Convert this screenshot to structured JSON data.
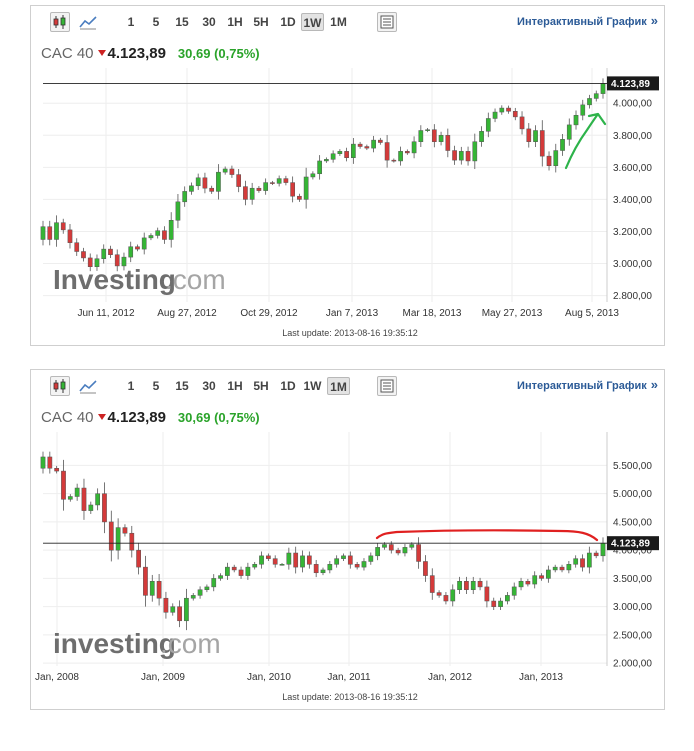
{
  "toolbar": {
    "intervals": [
      "1",
      "5",
      "15",
      "30",
      "1H",
      "5H",
      "1D",
      "1W",
      "1M"
    ],
    "interactive_link": "Интерактивный График",
    "link_chevron": "»"
  },
  "panels": [
    {
      "active_interval": "1W",
      "quote": {
        "name": "CAC 40",
        "price": "4.123,89",
        "change": "30,69 (0,75%)"
      },
      "last_update": "Last update: 2013-08-16 19:35:12",
      "price_tag": "4.123,89",
      "watermark": {
        "part1": "Investing",
        "part2": ".com"
      }
    },
    {
      "active_interval": "1M",
      "quote": {
        "name": "CAC 40",
        "price": "4.123,89",
        "change": "30,69 (0,75%)"
      },
      "last_update": "Last update: 2013-08-16 19:35:12",
      "price_tag": "4.123,89",
      "watermark": {
        "part1": "investing",
        "part2": ".com"
      }
    }
  ],
  "colors": {
    "up": "#35b535",
    "down": "#d43a3a",
    "annotation_green": "#2db34a",
    "annotation_red": "#e02020",
    "link": "#2c5b97"
  },
  "chart_data": [
    {
      "type": "candlestick",
      "interval": "1W",
      "x_tick_labels": [
        "Jun 11, 2012",
        "Aug 27, 2012",
        "Oct 29, 2012",
        "Jan 7, 2013",
        "Mar 18, 2013",
        "May 27, 2013",
        "Aug 5, 2013"
      ],
      "y_tick_labels": [
        "2.800,00",
        "3.000,00",
        "3.200,00",
        "3.400,00",
        "3.600,00",
        "3.800,00",
        "4.000,00"
      ],
      "y_ticks": [
        2800,
        3000,
        3200,
        3400,
        3600,
        3800,
        4000
      ],
      "ylim": [
        2760,
        4170
      ],
      "reference_line": 4123.89,
      "closes": [
        3230,
        3150,
        3255,
        3210,
        3130,
        3075,
        3035,
        2980,
        3030,
        3090,
        3055,
        2985,
        3040,
        3105,
        3090,
        3160,
        3175,
        3205,
        3150,
        3270,
        3385,
        3450,
        3485,
        3535,
        3470,
        3450,
        3570,
        3590,
        3555,
        3480,
        3400,
        3470,
        3455,
        3505,
        3500,
        3530,
        3505,
        3420,
        3400,
        3540,
        3560,
        3640,
        3650,
        3685,
        3700,
        3660,
        3745,
        3730,
        3720,
        3770,
        3755,
        3645,
        3640,
        3700,
        3690,
        3760,
        3830,
        3835,
        3760,
        3800,
        3705,
        3645,
        3700,
        3640,
        3760,
        3825,
        3905,
        3945,
        3970,
        3950,
        3915,
        3840,
        3760,
        3830,
        3670,
        3610,
        3705,
        3775,
        3865,
        3925,
        3990,
        4030,
        4060,
        4124
      ]
    },
    {
      "type": "candlestick",
      "interval": "1M",
      "x_tick_labels": [
        "Jan, 2008",
        "Jan, 2009",
        "Jan, 2010",
        "Jan, 2011",
        "Jan, 2012",
        "Jan, 2013"
      ],
      "y_tick_labels": [
        "2.000,00",
        "2.500,00",
        "3.000,00",
        "3.500,00",
        "4.000,00",
        "4.500,00",
        "5.000,00",
        "5.500,00"
      ],
      "y_ticks": [
        2000,
        2500,
        3000,
        3500,
        4000,
        4500,
        5000,
        5500
      ],
      "ylim": [
        1950,
        5950
      ],
      "reference_line": 4123.89,
      "closes": [
        5650,
        5450,
        5400,
        4900,
        4950,
        5100,
        4700,
        4800,
        5000,
        4500,
        4000,
        4400,
        4300,
        4000,
        3700,
        3200,
        3450,
        3150,
        2900,
        3000,
        2750,
        3150,
        3200,
        3300,
        3350,
        3500,
        3550,
        3700,
        3650,
        3550,
        3700,
        3750,
        3900,
        3850,
        3750,
        3750,
        3950,
        3700,
        3900,
        3750,
        3600,
        3650,
        3750,
        3850,
        3900,
        3750,
        3700,
        3800,
        3900,
        4050,
        4100,
        4000,
        3950,
        4050,
        4100,
        3800,
        3550,
        3250,
        3200,
        3100,
        3300,
        3450,
        3300,
        3450,
        3350,
        3100,
        3000,
        3100,
        3200,
        3350,
        3450,
        3400,
        3550,
        3500,
        3650,
        3700,
        3650,
        3750,
        3850,
        3700,
        3950,
        3900,
        4124
      ]
    }
  ]
}
